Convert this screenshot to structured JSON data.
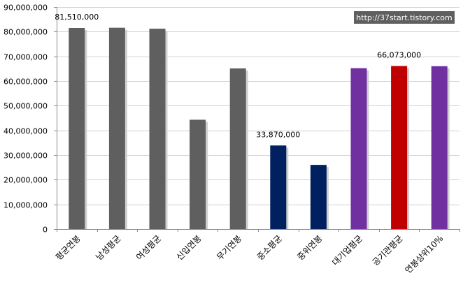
{
  "chart_data": {
    "type": "bar",
    "categories": [
      "평균연봉",
      "남성평균",
      "여성평균",
      "신입연봉",
      "무기연봉",
      "중소평균",
      "중위연봉",
      "대기업평균",
      "공기관평균",
      "연봉상위10%"
    ],
    "values": [
      81510000,
      81600000,
      81200000,
      44300000,
      65100000,
      33870000,
      26000000,
      65200000,
      66073000,
      66000000
    ],
    "bar_colors": [
      "#5f5f5f",
      "#5f5f5f",
      "#5f5f5f",
      "#5f5f5f",
      "#5f5f5f",
      "#002060",
      "#002060",
      "#7030a0",
      "#c00000",
      "#7030a0"
    ],
    "data_labels": [
      {
        "index": 0,
        "text": "81,510,000"
      },
      {
        "index": 5,
        "text": "33,870,000"
      },
      {
        "index": 8,
        "text": "66,073,000"
      }
    ],
    "y_ticks": [
      {
        "value": 0,
        "label": "0"
      },
      {
        "value": 10000000,
        "label": "10,000,000"
      },
      {
        "value": 20000000,
        "label": "20,000,000"
      },
      {
        "value": 30000000,
        "label": "30,000,000"
      },
      {
        "value": 40000000,
        "label": "40,000,000"
      },
      {
        "value": 50000000,
        "label": "50,000,000"
      },
      {
        "value": 60000000,
        "label": "60,000,000"
      },
      {
        "value": 70000000,
        "label": "70,000,000"
      },
      {
        "value": 80000000,
        "label": "80,000,000"
      },
      {
        "value": 90000000,
        "label": "90,000,000"
      }
    ],
    "ylim": [
      0,
      90000000
    ],
    "grid": true,
    "title": "",
    "xlabel": "",
    "ylabel": ""
  },
  "watermark": "http://37start.tistory.com"
}
